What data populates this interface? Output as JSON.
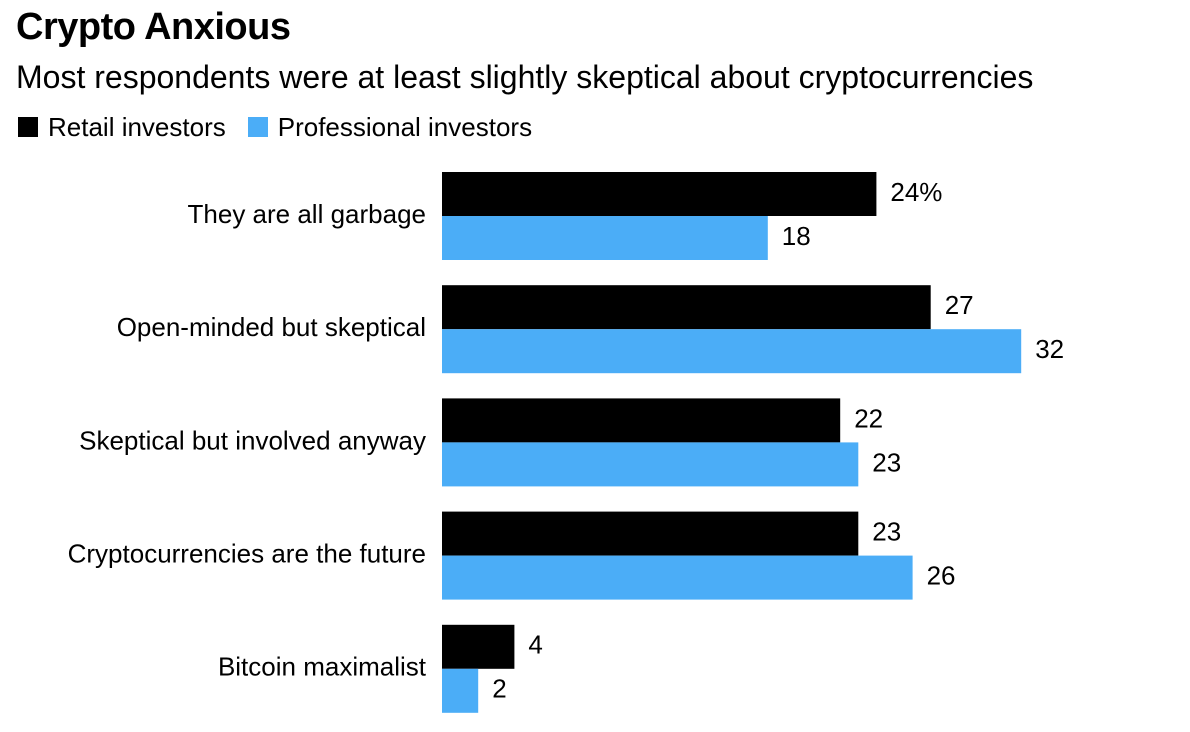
{
  "chart_data": {
    "type": "bar",
    "orientation": "horizontal",
    "title": "Crypto Anxious",
    "subtitle": "Most respondents were at least slightly skeptical about cryptocurrencies",
    "categories": [
      "They are all garbage",
      "Open-minded but skeptical",
      "Skeptical but involved anyway",
      "Cryptocurrencies are the future",
      "Bitcoin maximalist"
    ],
    "series": [
      {
        "name": "Retail investors",
        "color": "#000000",
        "values": [
          24,
          27,
          22,
          23,
          4
        ],
        "labels": [
          "24%",
          "27",
          "22",
          "23",
          "4"
        ]
      },
      {
        "name": "Professional investors",
        "color": "#4badf7",
        "values": [
          18,
          32,
          23,
          26,
          2
        ],
        "labels": [
          "18",
          "32",
          "23",
          "26",
          "2"
        ]
      }
    ],
    "xlim": [
      0,
      32
    ],
    "grid": false,
    "legend": "top-left"
  }
}
